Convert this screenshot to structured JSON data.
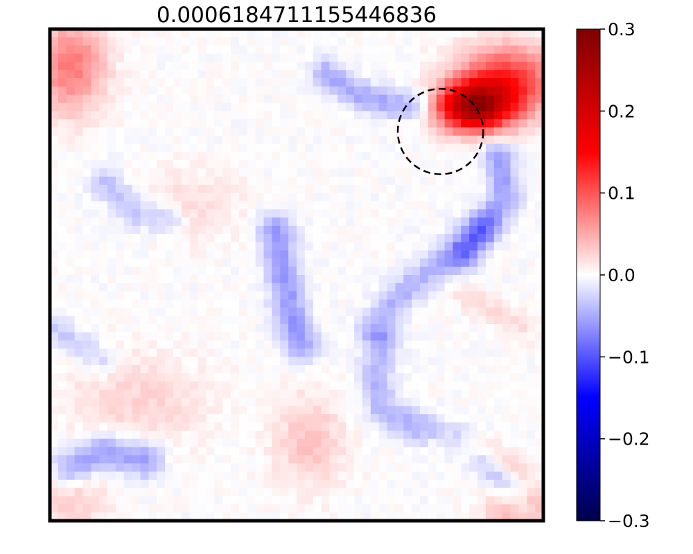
{
  "chart_data": {
    "type": "heatmap",
    "title": "0.0006184711155446836",
    "colormap": "seismic",
    "vmin": -0.3,
    "vmax": 0.3,
    "grid": false,
    "x_ticks_shown": false,
    "y_ticks_shown": false,
    "grid_size": [
      60,
      60
    ],
    "colorbar": {
      "placement": "right",
      "ticks": [
        0.3,
        0.2,
        0.1,
        0.0,
        -0.1,
        -0.2,
        -0.3
      ],
      "tick_labels": [
        "0.3",
        "0.2",
        "0.1",
        "0.0",
        "−0.1",
        "−0.2",
        "−0.3"
      ]
    },
    "annotation": {
      "shape": "dashed-circle",
      "center": [
        47,
        12
      ],
      "radius_cells": 5.2
    },
    "features": [
      {
        "kind": "hotspot",
        "center": [
          51,
          9
        ],
        "sigma": [
          3,
          2
        ],
        "value": 0.24
      },
      {
        "kind": "hotspot",
        "center": [
          55,
          6
        ],
        "sigma": [
          4,
          3
        ],
        "value": 0.13
      },
      {
        "kind": "hotspot",
        "center": [
          2,
          4
        ],
        "sigma": [
          3,
          4
        ],
        "value": 0.08
      },
      {
        "kind": "hotspot",
        "center": [
          57,
          58
        ],
        "sigma": [
          3,
          2
        ],
        "value": 0.06
      },
      {
        "kind": "hotspot",
        "center": [
          31,
          50
        ],
        "sigma": [
          3,
          4
        ],
        "value": 0.035
      },
      {
        "kind": "hotspot",
        "center": [
          10,
          45
        ],
        "sigma": [
          6,
          4
        ],
        "value": 0.025
      },
      {
        "kind": "hotspot",
        "center": [
          17,
          21
        ],
        "sigma": [
          4,
          3
        ],
        "value": 0.02
      },
      {
        "kind": "hotspot",
        "center": [
          2,
          57
        ],
        "sigma": [
          3,
          3
        ],
        "value": 0.03
      },
      {
        "kind": "hotspot",
        "center": [
          2,
          57
        ],
        "sigma": [
          3,
          3
        ],
        "value": 0.0
      },
      {
        "kind": "ridge",
        "points": [
          [
            33,
            5
          ],
          [
            38,
            8
          ],
          [
            44,
            9
          ]
        ],
        "width": 1.3,
        "value": -0.05
      },
      {
        "kind": "ridge",
        "points": [
          [
            6,
            18
          ],
          [
            10,
            22
          ],
          [
            14,
            23
          ]
        ],
        "width": 1.3,
        "value": -0.035
      },
      {
        "kind": "ridge",
        "points": [
          [
            27,
            24
          ],
          [
            28,
            30
          ],
          [
            29,
            35
          ],
          [
            30,
            38
          ]
        ],
        "width": 1.5,
        "value": -0.06
      },
      {
        "kind": "ridge",
        "points": [
          [
            39,
            36
          ],
          [
            42,
            32
          ],
          [
            47,
            28
          ],
          [
            52,
            24
          ]
        ],
        "width": 1.4,
        "value": -0.045
      },
      {
        "kind": "ridge",
        "points": [
          [
            54,
            15
          ],
          [
            55,
            20
          ],
          [
            52,
            24
          ],
          [
            50,
            27
          ]
        ],
        "width": 1.4,
        "value": -0.055
      },
      {
        "kind": "ridge",
        "points": [
          [
            40,
            38
          ],
          [
            39,
            42
          ],
          [
            40,
            46
          ],
          [
            44,
            48
          ],
          [
            49,
            50
          ]
        ],
        "width": 1.4,
        "value": -0.045
      },
      {
        "kind": "ridge",
        "points": [
          [
            2,
            53
          ],
          [
            6,
            51
          ],
          [
            11,
            52
          ]
        ],
        "width": 1.6,
        "value": -0.06
      },
      {
        "kind": "ridge",
        "points": [
          [
            52,
            52
          ],
          [
            55,
            55
          ],
          [
            57,
            58
          ]
        ],
        "width": 1.2,
        "value": -0.04
      },
      {
        "kind": "ridge",
        "points": [
          [
            50,
            32
          ],
          [
            54,
            34
          ],
          [
            57,
            36
          ]
        ],
        "width": 1.2,
        "value": 0.02
      },
      {
        "kind": "ridge",
        "points": [
          [
            47,
            50
          ],
          [
            52,
            51
          ],
          [
            56,
            53
          ]
        ],
        "width": 1.2,
        "value": 0.03
      },
      {
        "kind": "ridge",
        "points": [
          [
            0,
            36
          ],
          [
            3,
            38
          ],
          [
            6,
            40
          ]
        ],
        "width": 1.2,
        "value": -0.03
      }
    ]
  }
}
